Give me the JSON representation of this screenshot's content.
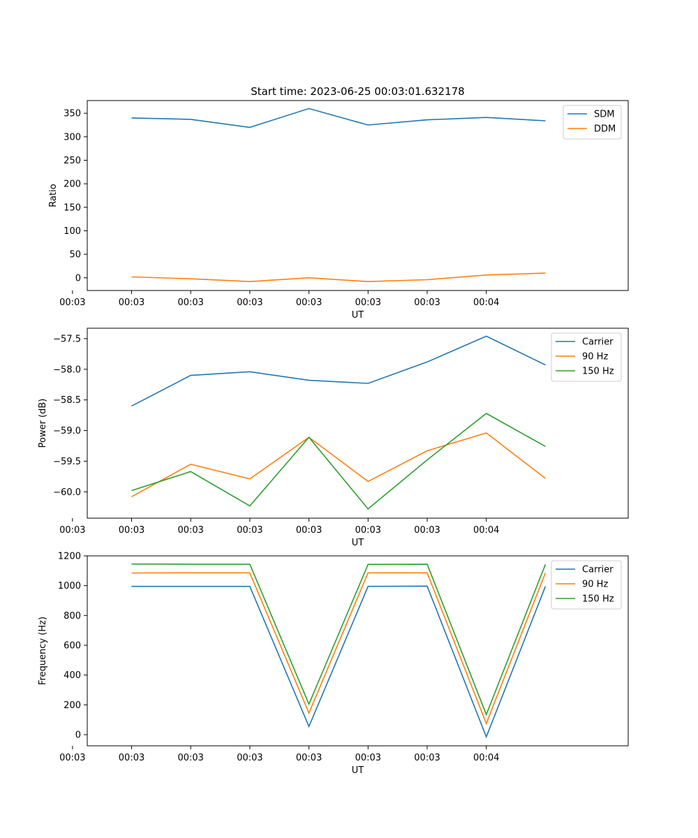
{
  "figure": {
    "title": "Start time: 2023-06-25 00:03:01.632178"
  },
  "chart_data": [
    {
      "type": "line",
      "title": "Start time: 2023-06-25 00:03:01.632178",
      "xlabel": "UT",
      "ylabel": "Ratio",
      "x_tick_labels": [
        "00:03",
        "00:03",
        "00:03",
        "00:03",
        "00:03",
        "00:03",
        "00:03",
        "00:04"
      ],
      "x_points": [
        1,
        2,
        3,
        4,
        5,
        6,
        7,
        8
      ],
      "xlim": [
        0.25,
        9.4
      ],
      "ylim": [
        -27,
        377
      ],
      "yticks": [
        0,
        50,
        100,
        150,
        200,
        250,
        300,
        350
      ],
      "legend": "top-right",
      "grid": false,
      "series": [
        {
          "name": "SDM",
          "color": "#1f77b4",
          "values": [
            340,
            337,
            320,
            360,
            325,
            336,
            341,
            334
          ]
        },
        {
          "name": "DDM",
          "color": "#ff7f0e",
          "values": [
            2,
            -2,
            -8,
            0,
            -8,
            -4,
            6,
            10
          ]
        }
      ]
    },
    {
      "type": "line",
      "xlabel": "UT",
      "ylabel": "Power (dB)",
      "x_tick_labels": [
        "00:03",
        "00:03",
        "00:03",
        "00:03",
        "00:03",
        "00:03",
        "00:03",
        "00:04"
      ],
      "x_points": [
        1,
        2,
        3,
        4,
        5,
        6,
        7,
        8
      ],
      "xlim": [
        0.25,
        9.4
      ],
      "ylim": [
        -60.43,
        -57.33
      ],
      "yticks": [
        -60.0,
        -59.5,
        -59.0,
        -58.5,
        -58.0,
        -57.5
      ],
      "ytick_labels": [
        "−60.0",
        "−59.5",
        "−59.0",
        "−58.5",
        "−58.0",
        "−57.5"
      ],
      "legend": "top-right",
      "grid": false,
      "series": [
        {
          "name": "Carrier",
          "color": "#1f77b4",
          "values": [
            -58.6,
            -58.1,
            -58.04,
            -58.18,
            -58.23,
            -57.88,
            -57.46,
            -57.93
          ]
        },
        {
          "name": "90 Hz",
          "color": "#ff7f0e",
          "values": [
            -60.08,
            -59.55,
            -59.79,
            -59.11,
            -59.83,
            -59.33,
            -59.04,
            -59.78
          ]
        },
        {
          "name": "150 Hz",
          "color": "#2ca02c",
          "values": [
            -59.98,
            -59.67,
            -60.23,
            -59.11,
            -60.28,
            -59.48,
            -58.72,
            -59.26
          ]
        }
      ]
    },
    {
      "type": "line",
      "xlabel": "UT",
      "ylabel": "Frequency (Hz)",
      "x_tick_labels": [
        "00:03",
        "00:03",
        "00:03",
        "00:03",
        "00:03",
        "00:03",
        "00:03",
        "00:04"
      ],
      "x_points": [
        1,
        2,
        3,
        4,
        5,
        6,
        7,
        8
      ],
      "xlim": [
        0.25,
        9.4
      ],
      "ylim": [
        -75,
        1200
      ],
      "yticks": [
        0,
        200,
        400,
        600,
        800,
        1000,
        1200
      ],
      "legend": "top-right",
      "grid": false,
      "series": [
        {
          "name": "Carrier",
          "color": "#1f77b4",
          "values": [
            995,
            995,
            995,
            55,
            995,
            997,
            -15,
            995
          ]
        },
        {
          "name": "90 Hz",
          "color": "#ff7f0e",
          "values": [
            1085,
            1086,
            1086,
            145,
            1086,
            1086,
            75,
            1085
          ]
        },
        {
          "name": "150 Hz",
          "color": "#2ca02c",
          "values": [
            1145,
            1144,
            1144,
            205,
            1143,
            1144,
            135,
            1143
          ]
        }
      ]
    }
  ]
}
